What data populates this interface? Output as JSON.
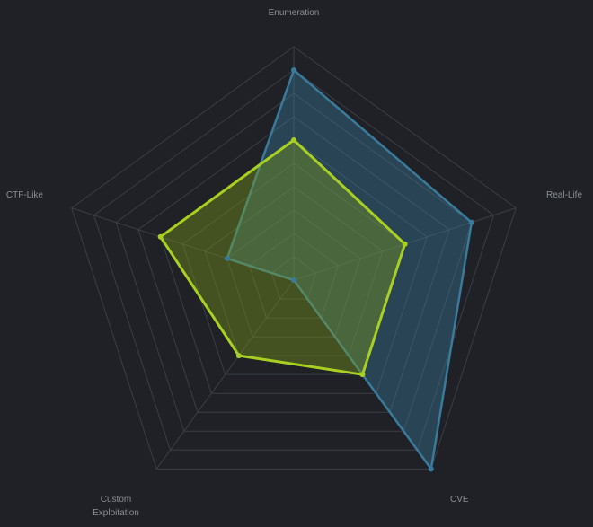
{
  "colors": {
    "background": "#1f2127",
    "grid": "#3b3e45",
    "label": "#8a8d93"
  },
  "chart_data": {
    "type": "radar",
    "axes": [
      {
        "key": "enumeration",
        "label": "Enumeration"
      },
      {
        "key": "real_life",
        "label": "Real-Life"
      },
      {
        "key": "cve",
        "label": "CVE"
      },
      {
        "key": "custom_exploitation",
        "label": "Custom Exploitation"
      },
      {
        "key": "ctf_like",
        "label": "CTF-Like"
      }
    ],
    "range": [
      0,
      10
    ],
    "grid_levels": 10,
    "grid": true,
    "series": [
      {
        "color": "#3a7a9a",
        "fill": "#3a7a9a",
        "values": [
          9,
          8,
          10,
          0,
          3
        ]
      },
      {
        "color": "#a8cf22",
        "fill": "#7d9c18",
        "values": [
          6,
          5,
          5,
          4,
          6
        ]
      }
    ]
  }
}
